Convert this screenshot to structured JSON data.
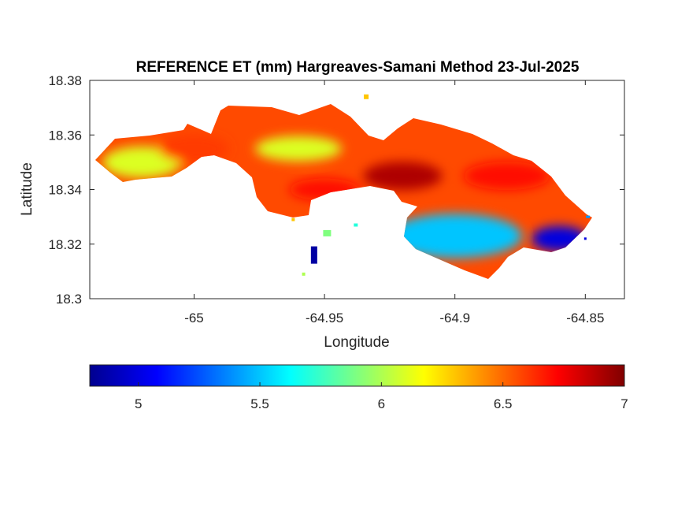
{
  "title": "REFERENCE ET (mm) Hargreaves-Samani Method  23-Jul-2025",
  "xlabel": "Longitude",
  "ylabel": "Latitude",
  "x_ticks": [
    "-65",
    "-64.95",
    "-64.9",
    "-64.85"
  ],
  "y_ticks": [
    "18.38",
    "18.36",
    "18.34",
    "18.32",
    "18.3"
  ],
  "colorbar": {
    "ticks": [
      "5",
      "5.5",
      "6",
      "6.5",
      "7"
    ],
    "colormap": "jet",
    "range": [
      4.8,
      7.0
    ],
    "colors": [
      "#00008f",
      "#0000ff",
      "#00ffff",
      "#ffff00",
      "#ff0000",
      "#800000"
    ]
  },
  "chart_data": {
    "type": "heatmap",
    "title": "REFERENCE ET (mm) Hargreaves-Samani Method  23-Jul-2025",
    "xlabel": "Longitude",
    "ylabel": "Latitude",
    "xlim": [
      -65.04,
      -64.835
    ],
    "ylim": [
      18.3,
      18.38
    ],
    "color_range": [
      4.8,
      7.0
    ],
    "colormap": "jet",
    "regions": [
      {
        "name": "",
        "lon": -65.02,
        "lat": 18.35,
        "value": 6.1
      },
      {
        "name": "",
        "lon": -65.0,
        "lat": 18.355,
        "value": 6.6
      },
      {
        "name": "",
        "lon": -64.96,
        "lat": 18.355,
        "value": 6.1
      },
      {
        "name": "",
        "lon": -64.95,
        "lat": 18.34,
        "value": 6.7
      },
      {
        "name": "",
        "lon": -64.92,
        "lat": 18.345,
        "value": 6.9
      },
      {
        "name": "",
        "lon": -64.88,
        "lat": 18.345,
        "value": 6.7
      },
      {
        "name": "",
        "lon": -64.9,
        "lat": 18.323,
        "value": 5.5
      },
      {
        "name": "",
        "lon": -64.86,
        "lat": 18.322,
        "value": 5.0
      },
      {
        "name": "",
        "lon": -64.954,
        "lat": 18.316,
        "value": 4.85
      }
    ]
  }
}
